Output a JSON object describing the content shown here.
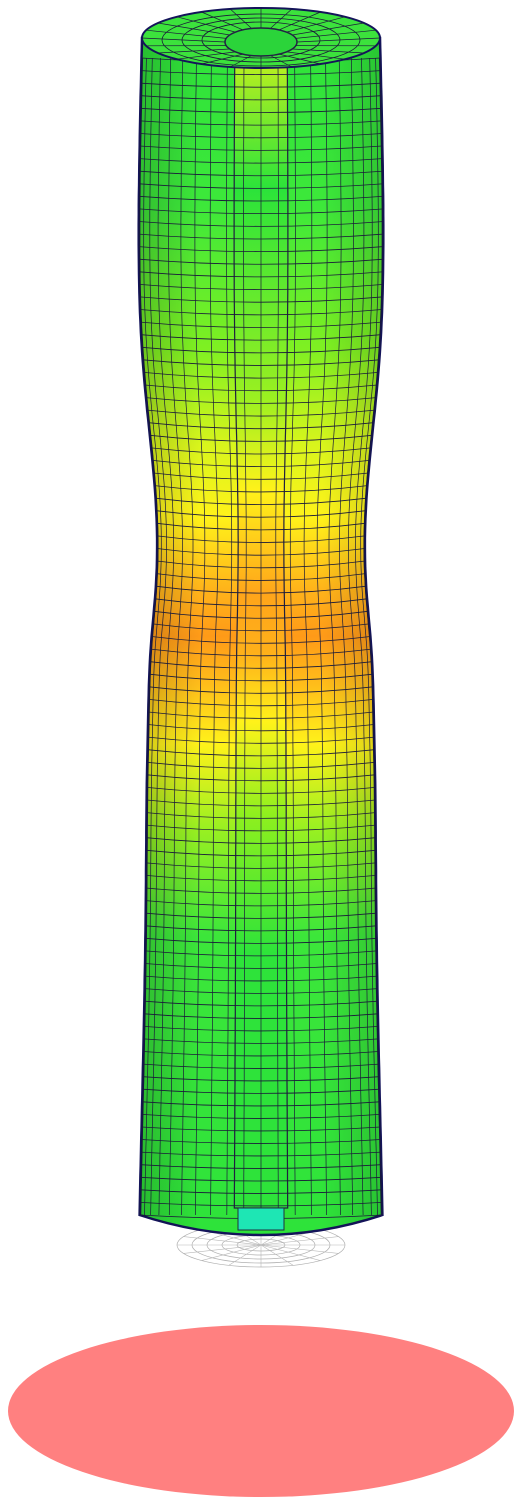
{
  "colors": {
    "background": "#ffffff",
    "contour_green": "#22e63a",
    "contour_lime": "#8ff01e",
    "contour_yellow": "#fff21a",
    "contour_orange": "#ff9a18",
    "contour_cyan": "#1ee6b4",
    "mesh_lines": "#1a1a3a",
    "outline": "#14145a",
    "base_plate": "#ff8080",
    "lower_mesh": "#b0b0b0"
  },
  "icons": {
    "specimen": "deformed-cylinder-mesh",
    "plate": "ellipse-plate"
  }
}
